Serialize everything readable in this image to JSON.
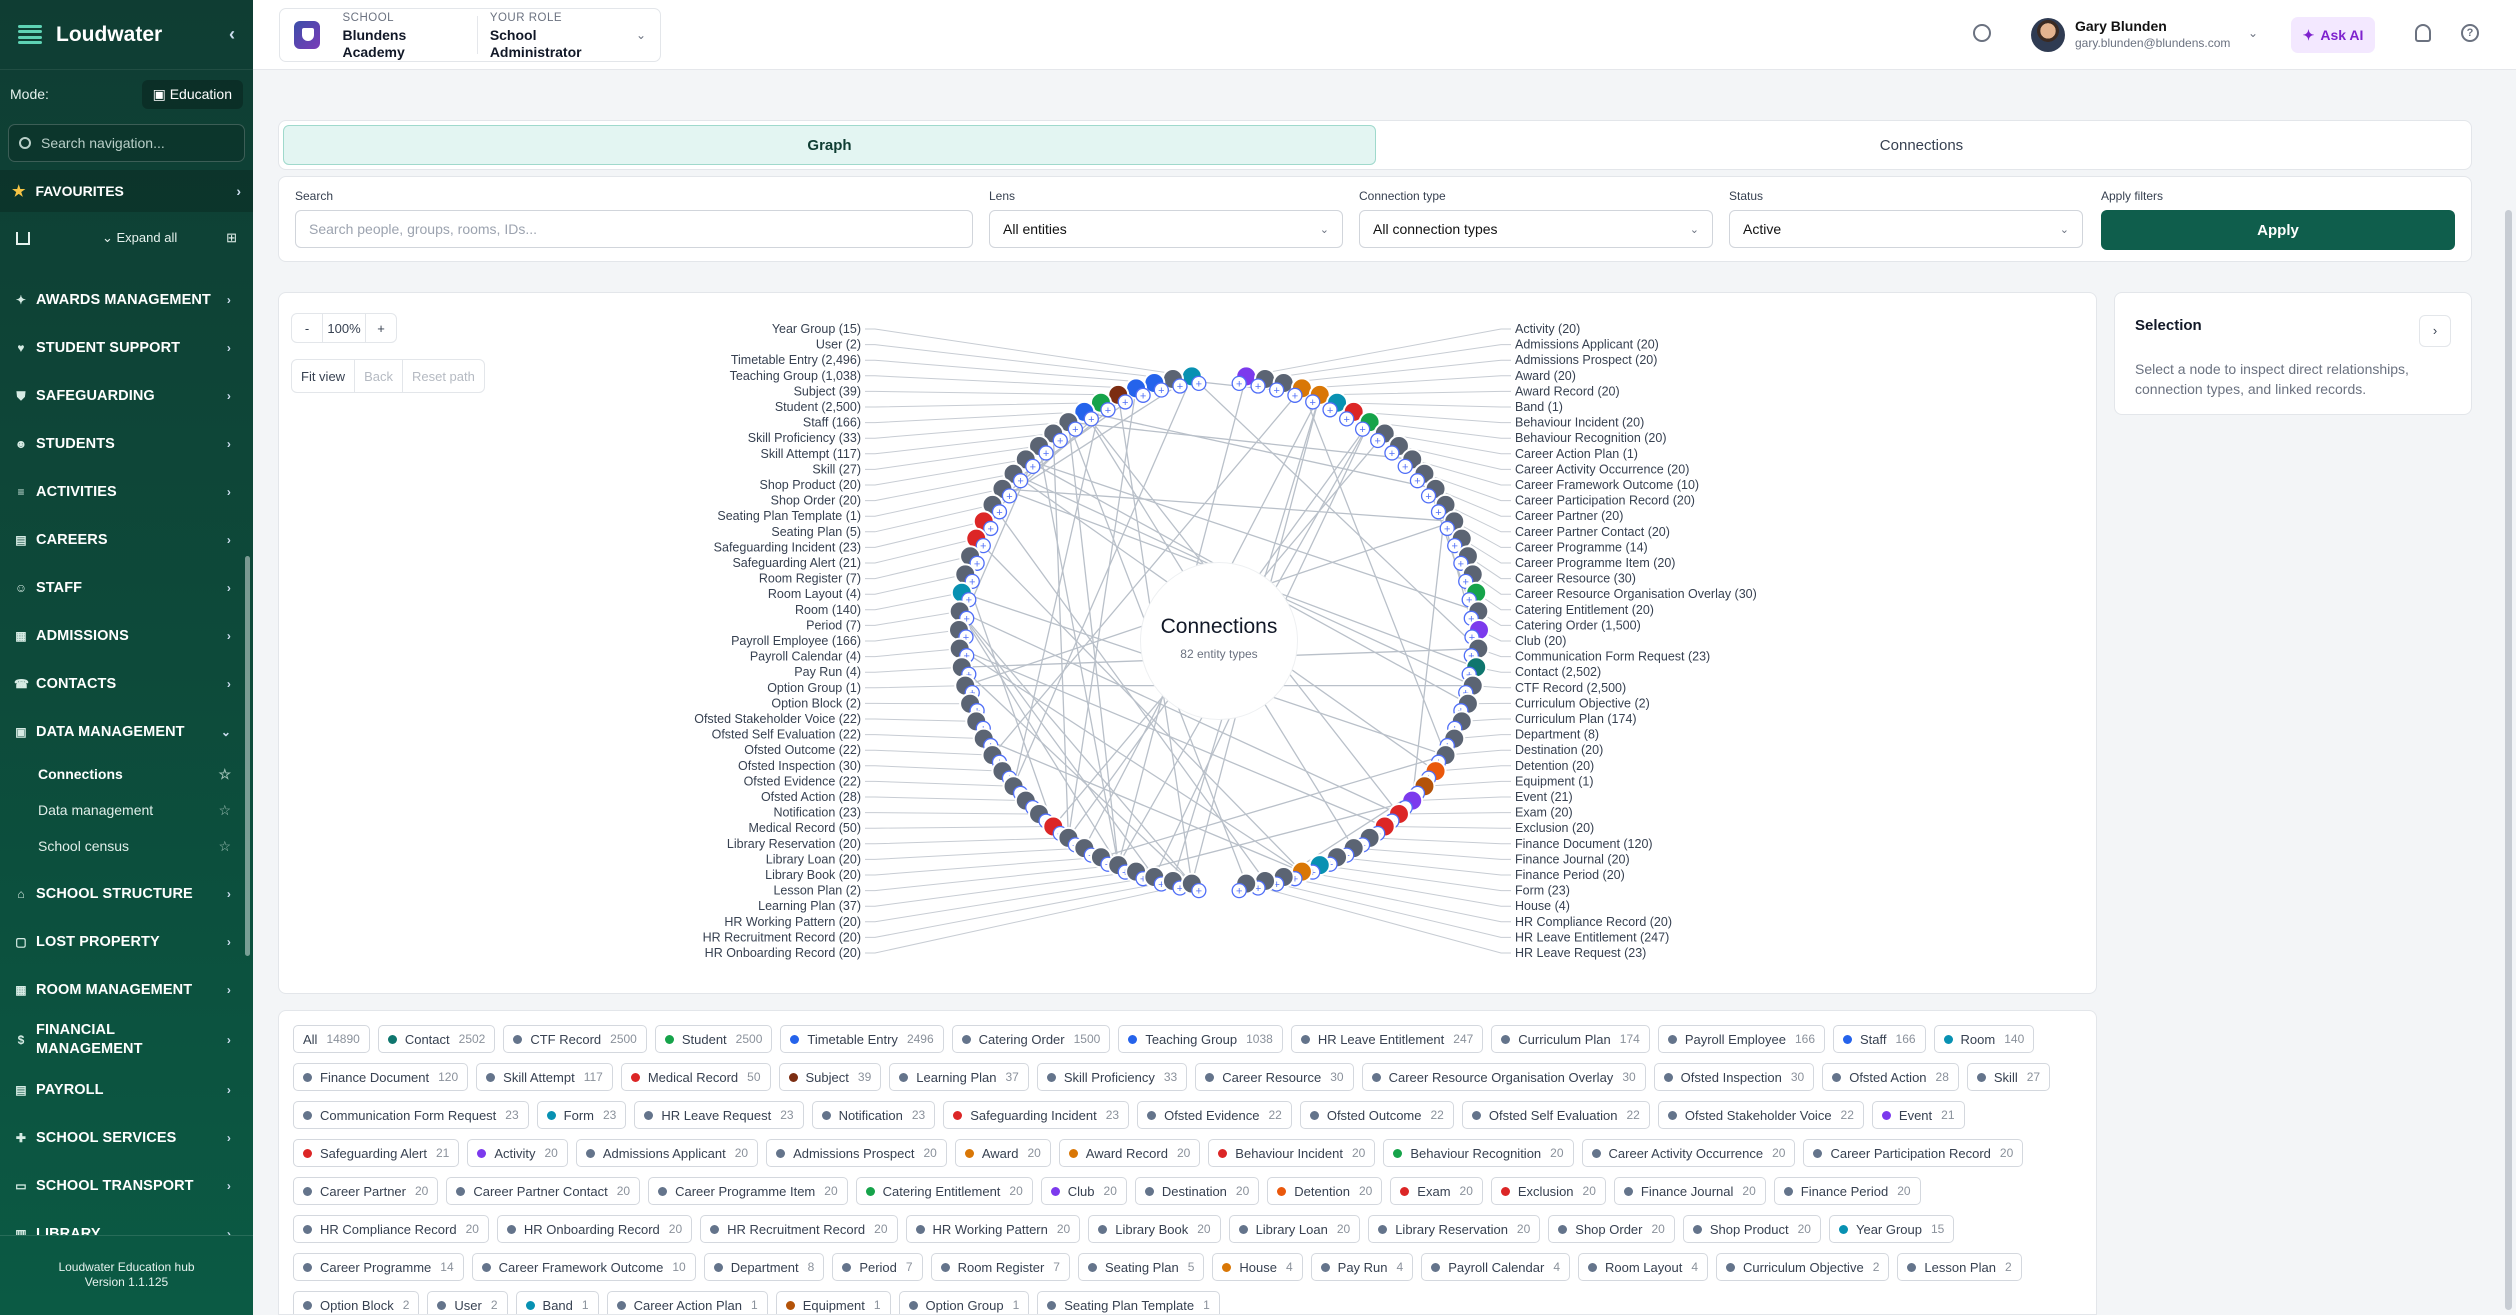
{
  "sidebar": {
    "brand": "Loudwater",
    "mode_label": "Mode:",
    "mode_value": "Education",
    "search_placeholder": "Search navigation...",
    "favourites": "FAVOURITES",
    "expand_all": "Expand all",
    "items": [
      {
        "label": "AWARDS MANAGEMENT",
        "icon": "trophy-icon"
      },
      {
        "label": "STUDENT SUPPORT",
        "icon": "heart-icon"
      },
      {
        "label": "SAFEGUARDING",
        "icon": "shield-icon"
      },
      {
        "label": "STUDENTS",
        "icon": "users-icon"
      },
      {
        "label": "ACTIVITIES",
        "icon": "list-icon"
      },
      {
        "label": "CAREERS",
        "icon": "briefcase-icon"
      },
      {
        "label": "STAFF",
        "icon": "staff-icon"
      },
      {
        "label": "ADMISSIONS",
        "icon": "admissions-icon"
      },
      {
        "label": "CONTACTS",
        "icon": "contacts-icon"
      },
      {
        "label": "DATA MANAGEMENT",
        "icon": "database-icon",
        "expanded": true
      }
    ],
    "sub_items": [
      {
        "label": "Connections",
        "active": true
      },
      {
        "label": "Data management"
      },
      {
        "label": "School census"
      }
    ],
    "items_after": [
      {
        "label": "SCHOOL STRUCTURE",
        "icon": "structure-icon"
      },
      {
        "label": "LOST PROPERTY",
        "icon": "box-icon"
      },
      {
        "label": "ROOM MANAGEMENT",
        "icon": "room-icon"
      },
      {
        "label": "FINANCIAL MANAGEMENT",
        "icon": "dollar-icon"
      },
      {
        "label": "PAYROLL",
        "icon": "payroll-icon"
      },
      {
        "label": "SCHOOL SERVICES",
        "icon": "services-icon"
      },
      {
        "label": "SCHOOL TRANSPORT",
        "icon": "bus-icon"
      },
      {
        "label": "LIBRARY",
        "icon": "book-icon"
      }
    ],
    "footer_title": "Loudwater Education hub",
    "footer_version": "Version 1.1.125"
  },
  "topbar": {
    "school_label": "SCHOOL",
    "school_value": "Blundens Academy",
    "role_label": "YOUR ROLE",
    "role_value": "School Administrator",
    "user_name": "Gary Blunden",
    "user_email": "gary.blunden@blundens.com",
    "ask_ai": "Ask AI"
  },
  "tabs": {
    "graph": "Graph",
    "connections": "Connections"
  },
  "filters": {
    "search_label": "Search",
    "search_placeholder": "Search people, groups, rooms, IDs...",
    "lens_label": "Lens",
    "lens_value": "All entities",
    "conn_label": "Connection type",
    "conn_value": "All connection types",
    "status_label": "Status",
    "status_value": "Active",
    "apply_label": "Apply filters",
    "apply_button": "Apply"
  },
  "graph": {
    "zoom_minus": "-",
    "zoom_level": "100%",
    "zoom_plus": "+",
    "fit_view": "Fit view",
    "back": "Back",
    "reset_path": "Reset path",
    "center_title": "Connections",
    "center_subtitle": "82 entity types",
    "left_labels": [
      "Year Group (15)",
      "User (2)",
      "Timetable Entry (2,496)",
      "Teaching Group (1,038)",
      "Subject (39)",
      "Student (2,500)",
      "Staff (166)",
      "Skill Proficiency (33)",
      "Skill Attempt (117)",
      "Skill (27)",
      "Shop Product (20)",
      "Shop Order (20)",
      "Seating Plan Template (1)",
      "Seating Plan (5)",
      "Safeguarding Incident (23)",
      "Safeguarding Alert (21)",
      "Room Register (7)",
      "Room Layout (4)",
      "Room (140)",
      "Period (7)",
      "Payroll Employee (166)",
      "Payroll Calendar (4)",
      "Pay Run (4)",
      "Option Group (1)",
      "Option Block (2)",
      "Ofsted Stakeholder Voice (22)",
      "Ofsted Self Evaluation (22)",
      "Ofsted Outcome (22)",
      "Ofsted Inspection (30)",
      "Ofsted Evidence (22)",
      "Ofsted Action (28)",
      "Notification (23)",
      "Medical Record (50)",
      "Library Reservation (20)",
      "Library Loan (20)",
      "Library Book (20)",
      "Lesson Plan (2)",
      "Learning Plan (37)",
      "HR Working Pattern (20)",
      "HR Recruitment Record (20)",
      "HR Onboarding Record (20)"
    ],
    "right_labels": [
      "Activity (20)",
      "Admissions Applicant (20)",
      "Admissions Prospect (20)",
      "Award (20)",
      "Award Record (20)",
      "Band (1)",
      "Behaviour Incident (20)",
      "Behaviour Recognition (20)",
      "Career Action Plan (1)",
      "Career Activity Occurrence (20)",
      "Career Framework Outcome (10)",
      "Career Participation Record (20)",
      "Career Partner (20)",
      "Career Partner Contact (20)",
      "Career Programme (14)",
      "Career Programme Item (20)",
      "Career Resource (30)",
      "Career Resource Organisation Overlay (30)",
      "Catering Entitlement (20)",
      "Catering Order (1,500)",
      "Club (20)",
      "Communication Form Request (23)",
      "Contact (2,502)",
      "CTF Record (2,500)",
      "Curriculum Objective (2)",
      "Curriculum Plan (174)",
      "Department (8)",
      "Destination (20)",
      "Detention (20)",
      "Equipment (1)",
      "Event (21)",
      "Exam (20)",
      "Exclusion (20)",
      "Finance Document (120)",
      "Finance Journal (20)",
      "Finance Period (20)",
      "Form (23)",
      "House (4)",
      "HR Compliance Record (20)",
      "HR Leave Entitlement (247)",
      "HR Leave Request (23)"
    ]
  },
  "selection": {
    "title": "Selection",
    "description": "Select a node to inspect direct relationships, connection types, and linked records."
  },
  "chips": [
    {
      "label": "All",
      "count": "14890",
      "color": ""
    },
    {
      "label": "Contact",
      "count": "2502",
      "color": "#0f766e"
    },
    {
      "label": "CTF Record",
      "count": "2500",
      "color": "#64748b"
    },
    {
      "label": "Student",
      "count": "2500",
      "color": "#16a34a"
    },
    {
      "label": "Timetable Entry",
      "count": "2496",
      "color": "#2563eb"
    },
    {
      "label": "Catering Order",
      "count": "1500",
      "color": "#64748b"
    },
    {
      "label": "Teaching Group",
      "count": "1038",
      "color": "#2563eb"
    },
    {
      "label": "HR Leave Entitlement",
      "count": "247",
      "color": "#64748b"
    },
    {
      "label": "Curriculum Plan",
      "count": "174",
      "color": "#64748b"
    },
    {
      "label": "Payroll Employee",
      "count": "166",
      "color": "#64748b"
    },
    {
      "label": "Staff",
      "count": "166",
      "color": "#2563eb"
    },
    {
      "label": "Room",
      "count": "140",
      "color": "#0891b2"
    },
    {
      "label": "Finance Document",
      "count": "120",
      "color": "#64748b"
    },
    {
      "label": "Skill Attempt",
      "count": "117",
      "color": "#64748b"
    },
    {
      "label": "Medical Record",
      "count": "50",
      "color": "#dc2626"
    },
    {
      "label": "Subject",
      "count": "39",
      "color": "#7c2d12"
    },
    {
      "label": "Learning Plan",
      "count": "37",
      "color": "#64748b"
    },
    {
      "label": "Skill Proficiency",
      "count": "33",
      "color": "#64748b"
    },
    {
      "label": "Career Resource",
      "count": "30",
      "color": "#64748b"
    },
    {
      "label": "Career Resource Organisation Overlay",
      "count": "30",
      "color": "#64748b"
    },
    {
      "label": "Ofsted Inspection",
      "count": "30",
      "color": "#64748b"
    },
    {
      "label": "Ofsted Action",
      "count": "28",
      "color": "#64748b"
    },
    {
      "label": "Skill",
      "count": "27",
      "color": "#64748b"
    },
    {
      "label": "Communication Form Request",
      "count": "23",
      "color": "#64748b"
    },
    {
      "label": "Form",
      "count": "23",
      "color": "#0891b2"
    },
    {
      "label": "HR Leave Request",
      "count": "23",
      "color": "#64748b"
    },
    {
      "label": "Notification",
      "count": "23",
      "color": "#64748b"
    },
    {
      "label": "Safeguarding Incident",
      "count": "23",
      "color": "#dc2626"
    },
    {
      "label": "Ofsted Evidence",
      "count": "22",
      "color": "#64748b"
    },
    {
      "label": "Ofsted Outcome",
      "count": "22",
      "color": "#64748b"
    },
    {
      "label": "Ofsted Self Evaluation",
      "count": "22",
      "color": "#64748b"
    },
    {
      "label": "Ofsted Stakeholder Voice",
      "count": "22",
      "color": "#64748b"
    },
    {
      "label": "Event",
      "count": "21",
      "color": "#7c3aed"
    },
    {
      "label": "Safeguarding Alert",
      "count": "21",
      "color": "#dc2626"
    },
    {
      "label": "Activity",
      "count": "20",
      "color": "#7c3aed"
    },
    {
      "label": "Admissions Applicant",
      "count": "20",
      "color": "#64748b"
    },
    {
      "label": "Admissions Prospect",
      "count": "20",
      "color": "#64748b"
    },
    {
      "label": "Award",
      "count": "20",
      "color": "#d97706"
    },
    {
      "label": "Award Record",
      "count": "20",
      "color": "#d97706"
    },
    {
      "label": "Behaviour Incident",
      "count": "20",
      "color": "#dc2626"
    },
    {
      "label": "Behaviour Recognition",
      "count": "20",
      "color": "#16a34a"
    },
    {
      "label": "Career Activity Occurrence",
      "count": "20",
      "color": "#64748b"
    },
    {
      "label": "Career Participation Record",
      "count": "20",
      "color": "#64748b"
    },
    {
      "label": "Career Partner",
      "count": "20",
      "color": "#64748b"
    },
    {
      "label": "Career Partner Contact",
      "count": "20",
      "color": "#64748b"
    },
    {
      "label": "Career Programme Item",
      "count": "20",
      "color": "#64748b"
    },
    {
      "label": "Catering Entitlement",
      "count": "20",
      "color": "#16a34a"
    },
    {
      "label": "Club",
      "count": "20",
      "color": "#7c3aed"
    },
    {
      "label": "Destination",
      "count": "20",
      "color": "#64748b"
    },
    {
      "label": "Detention",
      "count": "20",
      "color": "#ea580c"
    },
    {
      "label": "Exam",
      "count": "20",
      "color": "#dc2626"
    },
    {
      "label": "Exclusion",
      "count": "20",
      "color": "#dc2626"
    },
    {
      "label": "Finance Journal",
      "count": "20",
      "color": "#64748b"
    },
    {
      "label": "Finance Period",
      "count": "20",
      "color": "#64748b"
    },
    {
      "label": "HR Compliance Record",
      "count": "20",
      "color": "#64748b"
    },
    {
      "label": "HR Onboarding Record",
      "count": "20",
      "color": "#64748b"
    },
    {
      "label": "HR Recruitment Record",
      "count": "20",
      "color": "#64748b"
    },
    {
      "label": "HR Working Pattern",
      "count": "20",
      "color": "#64748b"
    },
    {
      "label": "Library Book",
      "count": "20",
      "color": "#64748b"
    },
    {
      "label": "Library Loan",
      "count": "20",
      "color": "#64748b"
    },
    {
      "label": "Library Reservation",
      "count": "20",
      "color": "#64748b"
    },
    {
      "label": "Shop Order",
      "count": "20",
      "color": "#64748b"
    },
    {
      "label": "Shop Product",
      "count": "20",
      "color": "#64748b"
    },
    {
      "label": "Year Group",
      "count": "15",
      "color": "#0891b2"
    },
    {
      "label": "Career Programme",
      "count": "14",
      "color": "#64748b"
    },
    {
      "label": "Career Framework Outcome",
      "count": "10",
      "color": "#64748b"
    },
    {
      "label": "Department",
      "count": "8",
      "color": "#64748b"
    },
    {
      "label": "Period",
      "count": "7",
      "color": "#64748b"
    },
    {
      "label": "Room Register",
      "count": "7",
      "color": "#64748b"
    },
    {
      "label": "Seating Plan",
      "count": "5",
      "color": "#64748b"
    },
    {
      "label": "House",
      "count": "4",
      "color": "#d97706"
    },
    {
      "label": "Pay Run",
      "count": "4",
      "color": "#64748b"
    },
    {
      "label": "Payroll Calendar",
      "count": "4",
      "color": "#64748b"
    },
    {
      "label": "Room Layout",
      "count": "4",
      "color": "#64748b"
    },
    {
      "label": "Curriculum Objective",
      "count": "2",
      "color": "#64748b"
    },
    {
      "label": "Lesson Plan",
      "count": "2",
      "color": "#64748b"
    },
    {
      "label": "Option Block",
      "count": "2",
      "color": "#64748b"
    },
    {
      "label": "User",
      "count": "2",
      "color": "#64748b"
    },
    {
      "label": "Band",
      "count": "1",
      "color": "#0891b2"
    },
    {
      "label": "Career Action Plan",
      "count": "1",
      "color": "#64748b"
    },
    {
      "label": "Equipment",
      "count": "1",
      "color": "#b45309"
    },
    {
      "label": "Option Group",
      "count": "1",
      "color": "#64748b"
    },
    {
      "label": "Seating Plan Template",
      "count": "1",
      "color": "#64748b"
    }
  ]
}
